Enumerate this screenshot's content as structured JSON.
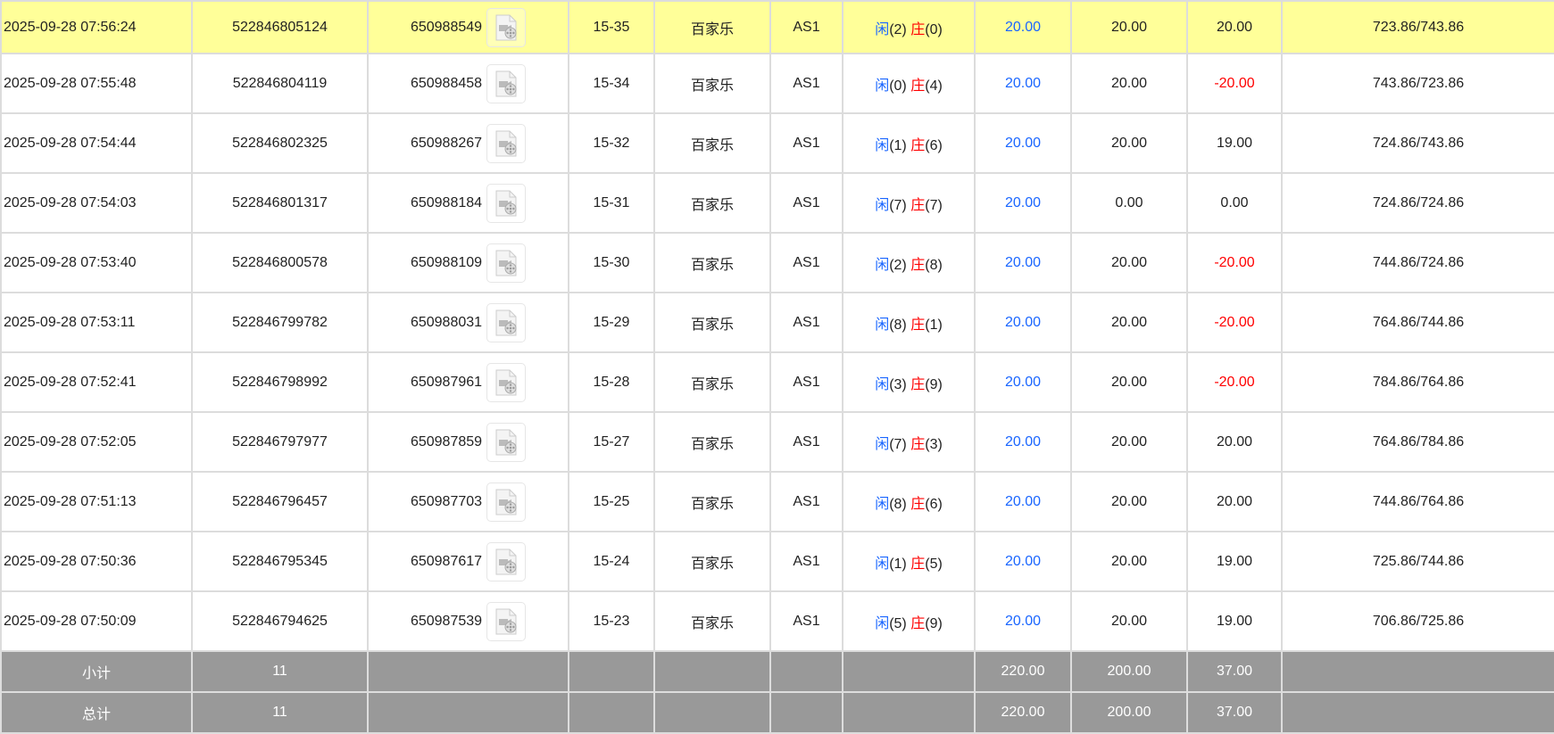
{
  "colors": {
    "highlight": "#ffff99",
    "summary": "#999999",
    "player": "#1a66ff",
    "banker": "#ff0000",
    "negative": "#ff0000",
    "bet": "#1a66ff"
  },
  "rows": [
    {
      "time": "2025-09-28 07:56:24",
      "bet_id": "522846805124",
      "round_id": "650988549",
      "shoe": "15-35",
      "game": "百家乐",
      "table": "AS1",
      "player_label": "闲",
      "player": "(2)",
      "banker_label": "庄",
      "banker": "(0)",
      "bet": "20.00",
      "valid": "20.00",
      "win": "20.00",
      "win_negative": false,
      "balance": "723.86/743.86",
      "highlight": true
    },
    {
      "time": "2025-09-28 07:55:48",
      "bet_id": "522846804119",
      "round_id": "650988458",
      "shoe": "15-34",
      "game": "百家乐",
      "table": "AS1",
      "player_label": "闲",
      "player": "(0)",
      "banker_label": "庄",
      "banker": "(4)",
      "bet": "20.00",
      "valid": "20.00",
      "win": "-20.00",
      "win_negative": true,
      "balance": "743.86/723.86"
    },
    {
      "time": "2025-09-28 07:54:44",
      "bet_id": "522846802325",
      "round_id": "650988267",
      "shoe": "15-32",
      "game": "百家乐",
      "table": "AS1",
      "player_label": "闲",
      "player": "(1)",
      "banker_label": "庄",
      "banker": "(6)",
      "bet": "20.00",
      "valid": "20.00",
      "win": "19.00",
      "win_negative": false,
      "balance": "724.86/743.86"
    },
    {
      "time": "2025-09-28 07:54:03",
      "bet_id": "522846801317",
      "round_id": "650988184",
      "shoe": "15-31",
      "game": "百家乐",
      "table": "AS1",
      "player_label": "闲",
      "player": "(7)",
      "banker_label": "庄",
      "banker": "(7)",
      "bet": "20.00",
      "valid": "0.00",
      "win": "0.00",
      "win_negative": false,
      "balance": "724.86/724.86"
    },
    {
      "time": "2025-09-28 07:53:40",
      "bet_id": "522846800578",
      "round_id": "650988109",
      "shoe": "15-30",
      "game": "百家乐",
      "table": "AS1",
      "player_label": "闲",
      "player": "(2)",
      "banker_label": "庄",
      "banker": "(8)",
      "bet": "20.00",
      "valid": "20.00",
      "win": "-20.00",
      "win_negative": true,
      "balance": "744.86/724.86"
    },
    {
      "time": "2025-09-28 07:53:11",
      "bet_id": "522846799782",
      "round_id": "650988031",
      "shoe": "15-29",
      "game": "百家乐",
      "table": "AS1",
      "player_label": "闲",
      "player": "(8)",
      "banker_label": "庄",
      "banker": "(1)",
      "bet": "20.00",
      "valid": "20.00",
      "win": "-20.00",
      "win_negative": true,
      "balance": "764.86/744.86"
    },
    {
      "time": "2025-09-28 07:52:41",
      "bet_id": "522846798992",
      "round_id": "650987961",
      "shoe": "15-28",
      "game": "百家乐",
      "table": "AS1",
      "player_label": "闲",
      "player": "(3)",
      "banker_label": "庄",
      "banker": "(9)",
      "bet": "20.00",
      "valid": "20.00",
      "win": "-20.00",
      "win_negative": true,
      "balance": "784.86/764.86"
    },
    {
      "time": "2025-09-28 07:52:05",
      "bet_id": "522846797977",
      "round_id": "650987859",
      "shoe": "15-27",
      "game": "百家乐",
      "table": "AS1",
      "player_label": "闲",
      "player": "(7)",
      "banker_label": "庄",
      "banker": "(3)",
      "bet": "20.00",
      "valid": "20.00",
      "win": "20.00",
      "win_negative": false,
      "balance": "764.86/784.86"
    },
    {
      "time": "2025-09-28 07:51:13",
      "bet_id": "522846796457",
      "round_id": "650987703",
      "shoe": "15-25",
      "game": "百家乐",
      "table": "AS1",
      "player_label": "闲",
      "player": "(8)",
      "banker_label": "庄",
      "banker": "(6)",
      "bet": "20.00",
      "valid": "20.00",
      "win": "20.00",
      "win_negative": false,
      "balance": "744.86/764.86"
    },
    {
      "time": "2025-09-28 07:50:36",
      "bet_id": "522846795345",
      "round_id": "650987617",
      "shoe": "15-24",
      "game": "百家乐",
      "table": "AS1",
      "player_label": "闲",
      "player": "(1)",
      "banker_label": "庄",
      "banker": "(5)",
      "bet": "20.00",
      "valid": "20.00",
      "win": "19.00",
      "win_negative": false,
      "balance": "725.86/744.86"
    },
    {
      "time": "2025-09-28 07:50:09",
      "bet_id": "522846794625",
      "round_id": "650987539",
      "shoe": "15-23",
      "game": "百家乐",
      "table": "AS1",
      "player_label": "闲",
      "player": "(5)",
      "banker_label": "庄",
      "banker": "(9)",
      "bet": "20.00",
      "valid": "20.00",
      "win": "19.00",
      "win_negative": false,
      "balance": "706.86/725.86"
    }
  ],
  "subtotal": {
    "label": "小计",
    "count": "11",
    "bet": "220.00",
    "valid": "200.00",
    "win": "37.00"
  },
  "total": {
    "label": "总计",
    "count": "11",
    "bet": "220.00",
    "valid": "200.00",
    "win": "37.00"
  },
  "icons": {
    "replay": "video-file-icon"
  }
}
